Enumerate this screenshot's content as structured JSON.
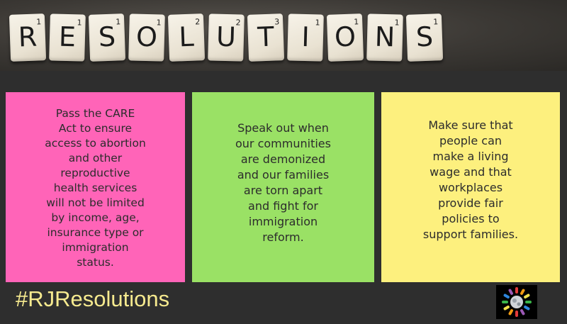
{
  "banner": {
    "tiles": [
      {
        "letter": "R",
        "points": "1"
      },
      {
        "letter": "E",
        "points": "1"
      },
      {
        "letter": "S",
        "points": "1"
      },
      {
        "letter": "O",
        "points": "1"
      },
      {
        "letter": "L",
        "points": "2"
      },
      {
        "letter": "U",
        "points": "2"
      },
      {
        "letter": "T",
        "points": "3"
      },
      {
        "letter": "I",
        "points": "1"
      },
      {
        "letter": "O",
        "points": "1"
      },
      {
        "letter": "N",
        "points": "1"
      },
      {
        "letter": "S",
        "points": "1"
      }
    ]
  },
  "notes": [
    {
      "text": "Pass the CARE\nAct to ensure\naccess to abortion\nand other\nreproductive\nhealth services\nwill not be limited\nby income, age,\ninsurance type or\nimmigration\nstatus.",
      "color": "#ff64b8"
    },
    {
      "text": "Speak out when\nour communities\nare demonized\nand our families\nare torn apart\nand fight for\nimmigration\nreform.",
      "color": "#9ae165"
    },
    {
      "text": "Make sure that\npeople can\nmake a living\nwage and that\nworkplaces\nprovide fair\npolicies to\nsupport families.",
      "color": "#fdf07e"
    }
  ],
  "hashtag": "#RJResolutions",
  "logo": {
    "icon": "sunburst-logo-icon",
    "colors": [
      "#e23b3b",
      "#f39c12",
      "#f1e04b",
      "#3ab54a",
      "#2e86de",
      "#9b59b6",
      "#ffffff"
    ]
  }
}
